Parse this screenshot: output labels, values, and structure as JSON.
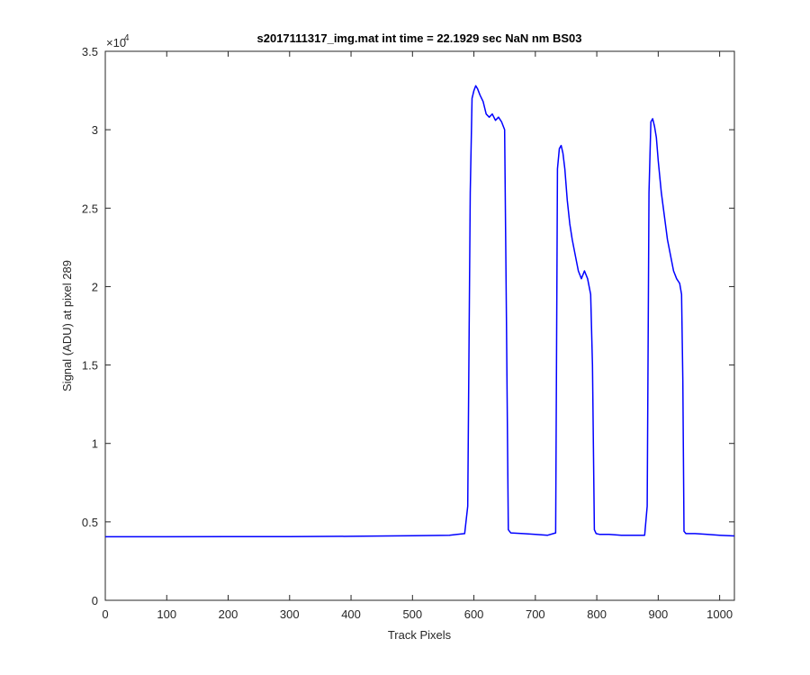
{
  "chart_data": {
    "type": "line",
    "title": "s2017111317_img.mat int time = 22.1929 sec  NaN nm BS03",
    "xlabel": "Track Pixels",
    "ylabel": "Signal (ADU) at pixel 289",
    "xlim": [
      0,
      1024
    ],
    "ylim": [
      0,
      35000
    ],
    "x_ticks": [
      0,
      100,
      200,
      300,
      400,
      500,
      600,
      700,
      800,
      900,
      1000
    ],
    "y_ticks": [
      0,
      5000,
      10000,
      15000,
      20000,
      25000,
      30000,
      35000
    ],
    "x_tick_labels": [
      "0",
      "100",
      "200",
      "300",
      "400",
      "500",
      "600",
      "700",
      "800",
      "900",
      "1000"
    ],
    "y_tick_labels": [
      "0",
      "0.5",
      "1",
      "1.5",
      "2",
      "2.5",
      "3",
      "3.5"
    ],
    "y_exponent_label": "×10",
    "y_exponent": "4",
    "grid": false,
    "legend": "none",
    "series_color": "#0000ff",
    "series": [
      {
        "x": [
          0,
          100,
          200,
          300,
          400,
          500,
          560,
          585,
          590,
          594,
          597,
          600,
          603,
          606,
          610,
          615,
          620,
          625,
          630,
          635,
          640,
          645,
          650,
          653,
          656,
          660,
          680,
          700,
          720,
          733,
          736,
          739,
          742,
          745,
          748,
          752,
          756,
          760,
          765,
          770,
          775,
          780,
          785,
          790,
          793,
          796,
          799,
          805,
          820,
          840,
          860,
          878,
          882,
          885,
          888,
          891,
          894,
          897,
          900,
          905,
          910,
          915,
          920,
          925,
          930,
          935,
          938,
          940,
          942,
          945,
          960,
          980,
          1000,
          1024
        ],
        "y": [
          4050,
          4050,
          4060,
          4060,
          4080,
          4120,
          4150,
          4250,
          6000,
          26000,
          32000,
          32500,
          32800,
          32600,
          32200,
          31800,
          31000,
          30800,
          31000,
          30600,
          30800,
          30500,
          30000,
          18000,
          4500,
          4300,
          4250,
          4200,
          4150,
          4300,
          27500,
          28800,
          29000,
          28500,
          27500,
          25500,
          24000,
          23000,
          22000,
          21000,
          20500,
          21000,
          20500,
          19500,
          15000,
          4500,
          4250,
          4200,
          4200,
          4150,
          4150,
          4150,
          6000,
          26000,
          30500,
          30700,
          30200,
          29500,
          28000,
          26000,
          24500,
          23000,
          22000,
          21000,
          20500,
          20200,
          19500,
          14000,
          4400,
          4250,
          4250,
          4200,
          4150,
          4100
        ]
      }
    ]
  }
}
